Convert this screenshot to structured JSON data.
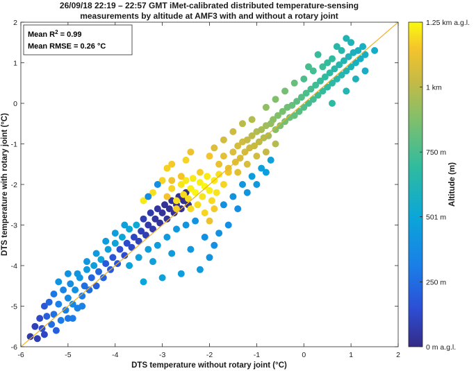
{
  "chart_data": {
    "type": "scatter",
    "title_line1": "26/09/18 22:19 – 22:57 GMT iMet-calibrated distributed temperature-sensing",
    "title_line2": "measurements by altitude at AMF3 with and without a rotary joint",
    "xlabel": "DTS temperature without rotary joint (°C)",
    "ylabel": "DTS temperature with rotary joint (°C)",
    "xlim": [
      -6,
      2
    ],
    "ylim": [
      -6,
      2
    ],
    "xticks": [
      "-6",
      "-5",
      "-4",
      "-3",
      "-2",
      "-1",
      "0",
      "1",
      "2"
    ],
    "yticks": [
      "-6",
      "-5",
      "-4",
      "-3",
      "-2",
      "-1",
      "0",
      "1",
      "2"
    ],
    "reference_line": {
      "x": [
        -6,
        2
      ],
      "y": [
        -6,
        2
      ],
      "color": "#EDB120"
    },
    "annotation": {
      "r2_label": "Mean R",
      "r2_sup": "2",
      "r2_value": " = 0.99",
      "rmse": "Mean RMSE = 0.26 °C"
    },
    "colorbar": {
      "label": "Altitude (m)",
      "colormap": "parula",
      "range": [
        0,
        1250
      ],
      "ticks": [
        {
          "value": 0,
          "label": "0 m a.g.l."
        },
        {
          "value": 250,
          "label": "250 m"
        },
        {
          "value": 501,
          "label": "501 m"
        },
        {
          "value": 750,
          "label": "750 m"
        },
        {
          "value": 1000,
          "label": "1 km"
        },
        {
          "value": 1250,
          "label": "1.25 km a.g.l."
        }
      ]
    },
    "points": [
      [
        -5.8,
        -5.75,
        60
      ],
      [
        -5.7,
        -5.5,
        90
      ],
      [
        -5.65,
        -5.8,
        80
      ],
      [
        -5.6,
        -5.3,
        120
      ],
      [
        -5.55,
        -5.55,
        140
      ],
      [
        -5.5,
        -5.0,
        180
      ],
      [
        -5.5,
        -5.7,
        110
      ],
      [
        -5.45,
        -5.25,
        200
      ],
      [
        -5.4,
        -4.9,
        230
      ],
      [
        -5.35,
        -5.45,
        250
      ],
      [
        -5.3,
        -4.7,
        290
      ],
      [
        -5.3,
        -5.2,
        270
      ],
      [
        -5.25,
        -5.6,
        200
      ],
      [
        -5.2,
        -4.95,
        320
      ],
      [
        -5.15,
        -5.35,
        300
      ],
      [
        -5.1,
        -4.6,
        340
      ],
      [
        -5.05,
        -5.1,
        310
      ],
      [
        -5.0,
        -4.8,
        360
      ],
      [
        -5.0,
        -5.3,
        280
      ],
      [
        -4.95,
        -4.45,
        380
      ],
      [
        -4.9,
        -4.95,
        350
      ],
      [
        -4.85,
        -4.6,
        400
      ],
      [
        -4.8,
        -5.05,
        330
      ],
      [
        -4.75,
        -4.3,
        420
      ],
      [
        -4.7,
        -4.75,
        300
      ],
      [
        -4.65,
        -4.5,
        260
      ],
      [
        -4.6,
        -4.1,
        440
      ],
      [
        -4.55,
        -4.6,
        240
      ],
      [
        -4.5,
        -4.3,
        220
      ],
      [
        -4.45,
        -4.0,
        460
      ],
      [
        -4.4,
        -4.5,
        200
      ],
      [
        -4.35,
        -4.15,
        230
      ],
      [
        -4.3,
        -3.85,
        480
      ],
      [
        -4.25,
        -4.3,
        210
      ],
      [
        -4.2,
        -3.95,
        190
      ],
      [
        -4.15,
        -3.6,
        470
      ],
      [
        -4.1,
        -4.1,
        180
      ],
      [
        -4.05,
        -3.8,
        170
      ],
      [
        -4.0,
        -3.45,
        490
      ],
      [
        -3.95,
        -3.95,
        160
      ],
      [
        -3.9,
        -3.6,
        150
      ],
      [
        -3.85,
        -3.3,
        500
      ],
      [
        -3.8,
        -3.75,
        140
      ],
      [
        -3.75,
        -3.45,
        130
      ],
      [
        -3.7,
        -3.1,
        510
      ],
      [
        -3.65,
        -3.55,
        120
      ],
      [
        -3.6,
        -3.3,
        110
      ],
      [
        -3.55,
        -3.0,
        520
      ],
      [
        -3.5,
        -3.4,
        100
      ],
      [
        -3.45,
        -3.15,
        90
      ],
      [
        -3.4,
        -2.85,
        80
      ],
      [
        -3.35,
        -3.25,
        85
      ],
      [
        -3.3,
        -3.0,
        70
      ],
      [
        -3.25,
        -2.7,
        60
      ],
      [
        -3.2,
        -3.1,
        65
      ],
      [
        -3.15,
        -2.85,
        50
      ],
      [
        -3.1,
        -2.6,
        45
      ],
      [
        -3.05,
        -2.95,
        40
      ],
      [
        -3.0,
        -2.7,
        35
      ],
      [
        -2.95,
        -2.5,
        30
      ],
      [
        -2.9,
        -2.85,
        40
      ],
      [
        -2.85,
        -2.6,
        25
      ],
      [
        -2.8,
        -2.4,
        20
      ],
      [
        -2.75,
        -2.7,
        30
      ],
      [
        -2.7,
        -2.5,
        20
      ],
      [
        -2.65,
        -2.3,
        15
      ],
      [
        -2.6,
        -2.6,
        25
      ],
      [
        -2.55,
        -2.4,
        15
      ],
      [
        -2.5,
        -2.2,
        10
      ],
      [
        -2.45,
        -2.5,
        20
      ],
      [
        -3.7,
        -4.0,
        480
      ],
      [
        -3.5,
        -3.8,
        470
      ],
      [
        -3.3,
        -3.6,
        460
      ],
      [
        -3.1,
        -3.5,
        455
      ],
      [
        -2.9,
        -3.3,
        440
      ],
      [
        -2.7,
        -3.1,
        430
      ],
      [
        -2.5,
        -3.0,
        420
      ],
      [
        -2.3,
        -2.9,
        410
      ],
      [
        -2.1,
        -3.3,
        400
      ],
      [
        -1.9,
        -3.5,
        390
      ],
      [
        -3.2,
        -3.9,
        470
      ],
      [
        -2.8,
        -3.7,
        450
      ],
      [
        -2.4,
        -3.6,
        430
      ],
      [
        -2.0,
        -3.8,
        410
      ],
      [
        -1.8,
        -3.2,
        400
      ],
      [
        -2.2,
        -4.1,
        440
      ],
      [
        -2.6,
        -4.2,
        460
      ],
      [
        -3.0,
        -4.3,
        480
      ],
      [
        -3.4,
        -4.4,
        490
      ],
      [
        -1.6,
        -3.0,
        390
      ],
      [
        -2.9,
        -2.3,
        1150
      ],
      [
        -2.8,
        -2.1,
        1180
      ],
      [
        -2.7,
        -2.4,
        1200
      ],
      [
        -2.6,
        -2.0,
        1210
      ],
      [
        -2.55,
        -2.25,
        1190
      ],
      [
        -2.5,
        -1.9,
        1220
      ],
      [
        -2.45,
        -2.35,
        1200
      ],
      [
        -2.4,
        -2.1,
        1230
      ],
      [
        -2.35,
        -1.85,
        1220
      ],
      [
        -2.3,
        -2.2,
        1240
      ],
      [
        -2.25,
        -2.5,
        1200
      ],
      [
        -2.2,
        -1.95,
        1230
      ],
      [
        -2.15,
        -2.3,
        1210
      ],
      [
        -2.1,
        -2.05,
        1240
      ],
      [
        -2.05,
        -1.8,
        1220
      ],
      [
        -2.0,
        -2.15,
        1230
      ],
      [
        -1.95,
        -2.4,
        1190
      ],
      [
        -1.9,
        -1.9,
        1220
      ],
      [
        -1.85,
        -2.2,
        1210
      ],
      [
        -1.8,
        -1.75,
        1200
      ],
      [
        -2.7,
        -2.6,
        1170
      ],
      [
        -2.4,
        -2.6,
        1190
      ],
      [
        -2.1,
        -2.7,
        1180
      ],
      [
        -1.9,
        -2.6,
        1160
      ],
      [
        -2.6,
        -1.8,
        1150
      ],
      [
        -2.2,
        -1.7,
        1170
      ],
      [
        -1.7,
        -2.0,
        1180
      ],
      [
        -1.6,
        -1.7,
        1150
      ],
      [
        -2.8,
        -1.9,
        1140
      ],
      [
        -2.0,
        -2.9,
        1130
      ],
      [
        -1.8,
        -1.5,
        1120
      ],
      [
        -1.7,
        -1.3,
        1100
      ],
      [
        -1.6,
        -1.6,
        1110
      ],
      [
        -1.5,
        -1.2,
        1080
      ],
      [
        -1.45,
        -1.45,
        1090
      ],
      [
        -1.4,
        -1.05,
        1060
      ],
      [
        -1.35,
        -1.35,
        1070
      ],
      [
        -1.3,
        -0.95,
        1040
      ],
      [
        -1.25,
        -1.2,
        1050
      ],
      [
        -1.2,
        -0.9,
        1020
      ],
      [
        -1.15,
        -1.1,
        1030
      ],
      [
        -1.1,
        -0.8,
        1000
      ],
      [
        -1.05,
        -1.05,
        1010
      ],
      [
        -1.0,
        -0.7,
        980
      ],
      [
        -0.95,
        -0.95,
        990
      ],
      [
        -0.9,
        -0.65,
        960
      ],
      [
        -0.85,
        -0.85,
        970
      ],
      [
        -0.8,
        -0.55,
        940
      ],
      [
        -0.75,
        -0.8,
        950
      ],
      [
        -0.7,
        -0.5,
        920
      ],
      [
        -1.9,
        -1.1,
        1080
      ],
      [
        -1.7,
        -0.9,
        1060
      ],
      [
        -1.5,
        -0.7,
        1040
      ],
      [
        -1.3,
        -0.5,
        1000
      ],
      [
        -1.1,
        -0.4,
        980
      ],
      [
        -1.4,
        -1.7,
        1090
      ],
      [
        -1.2,
        -1.5,
        1070
      ],
      [
        -1.0,
        -1.3,
        1050
      ],
      [
        -0.8,
        -1.2,
        1020
      ],
      [
        -0.6,
        -1.0,
        990
      ],
      [
        -0.65,
        -0.4,
        900
      ],
      [
        -0.6,
        -0.65,
        890
      ],
      [
        -0.55,
        -0.3,
        880
      ],
      [
        -0.5,
        -0.55,
        870
      ],
      [
        -0.45,
        -0.2,
        860
      ],
      [
        -0.4,
        -0.45,
        850
      ],
      [
        -0.35,
        -0.1,
        840
      ],
      [
        -0.3,
        -0.35,
        830
      ],
      [
        -0.25,
        -0.05,
        820
      ],
      [
        -0.2,
        -0.3,
        810
      ],
      [
        -0.15,
        0.05,
        800
      ],
      [
        -0.1,
        -0.2,
        790
      ],
      [
        -0.05,
        0.15,
        780
      ],
      [
        0.0,
        -0.1,
        770
      ],
      [
        0.05,
        0.25,
        760
      ],
      [
        0.1,
        0.0,
        750
      ],
      [
        0.15,
        0.35,
        745
      ],
      [
        0.2,
        0.1,
        740
      ],
      [
        0.25,
        0.45,
        730
      ],
      [
        0.3,
        0.2,
        720
      ],
      [
        0.35,
        0.55,
        710
      ],
      [
        0.4,
        0.3,
        700
      ],
      [
        0.45,
        0.65,
        690
      ],
      [
        0.5,
        0.4,
        680
      ],
      [
        0.55,
        0.75,
        675
      ],
      [
        0.6,
        0.5,
        670
      ],
      [
        0.65,
        0.85,
        660
      ],
      [
        0.7,
        0.6,
        650
      ],
      [
        0.75,
        0.95,
        645
      ],
      [
        0.8,
        0.7,
        640
      ],
      [
        0.85,
        1.05,
        630
      ],
      [
        0.9,
        0.8,
        620
      ],
      [
        0.95,
        1.15,
        610
      ],
      [
        1.0,
        0.9,
        600
      ],
      [
        1.05,
        1.25,
        590
      ],
      [
        1.1,
        1.0,
        585
      ],
      [
        1.15,
        1.3,
        580
      ],
      [
        1.2,
        1.1,
        575
      ],
      [
        1.25,
        1.4,
        570
      ],
      [
        1.3,
        1.2,
        565
      ],
      [
        0.6,
        1.1,
        690
      ],
      [
        0.4,
        0.9,
        720
      ],
      [
        0.2,
        0.8,
        740
      ],
      [
        0.0,
        0.6,
        760
      ],
      [
        0.8,
        1.3,
        650
      ],
      [
        1.0,
        1.5,
        610
      ],
      [
        0.5,
        1.0,
        700
      ],
      [
        0.3,
        1.2,
        710
      ],
      [
        0.7,
        1.4,
        660
      ],
      [
        0.9,
        1.6,
        620
      ],
      [
        -0.4,
        0.3,
        850
      ],
      [
        -0.6,
        0.1,
        880
      ],
      [
        -0.8,
        -0.1,
        910
      ],
      [
        -0.2,
        0.5,
        820
      ],
      [
        0.1,
        0.9,
        750
      ],
      [
        1.1,
        0.6,
        600
      ],
      [
        1.3,
        0.8,
        560
      ],
      [
        1.5,
        1.3,
        555
      ],
      [
        0.9,
        0.3,
        630
      ],
      [
        0.6,
        0.0,
        680
      ],
      [
        -4.8,
        -4.2,
        420
      ],
      [
        -4.6,
        -3.9,
        430
      ],
      [
        -4.4,
        -3.7,
        440
      ],
      [
        -4.2,
        -3.4,
        450
      ],
      [
        -4.0,
        -3.2,
        460
      ],
      [
        -3.8,
        -3.0,
        470
      ],
      [
        -5.2,
        -4.4,
        410
      ],
      [
        -5.0,
        -4.2,
        400
      ],
      [
        -4.9,
        -5.3,
        300
      ],
      [
        -4.7,
        -5.0,
        320
      ],
      [
        -3.4,
        -2.4,
        1220
      ],
      [
        -3.2,
        -2.2,
        1200
      ],
      [
        -3.0,
        -1.9,
        1180
      ],
      [
        -2.8,
        -1.5,
        1160
      ],
      [
        -3.1,
        -2.0,
        380
      ],
      [
        -3.3,
        -2.3,
        390
      ],
      [
        -2.9,
        -1.6,
        1170
      ],
      [
        -2.5,
        -1.4,
        1180
      ],
      [
        -2.0,
        -1.3,
        1150
      ],
      [
        -2.4,
        -1.2,
        1130
      ],
      [
        -1.7,
        -2.5,
        400
      ],
      [
        -1.5,
        -2.3,
        410
      ],
      [
        -1.3,
        -2.0,
        430
      ],
      [
        -1.1,
        -1.8,
        450
      ],
      [
        -0.9,
        -1.6,
        470
      ],
      [
        -0.7,
        -1.4,
        480
      ],
      [
        -1.4,
        -2.6,
        380
      ],
      [
        -1.2,
        -2.2,
        420
      ],
      [
        -1.0,
        -2.0,
        440
      ],
      [
        -0.8,
        -1.7,
        460
      ]
    ]
  }
}
